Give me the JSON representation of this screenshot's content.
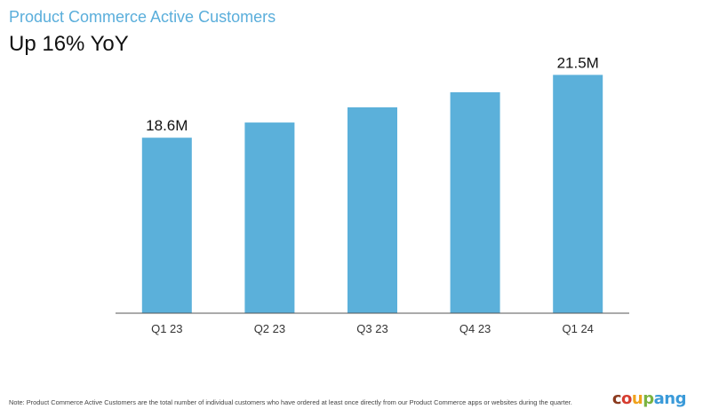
{
  "header": {
    "title": "Product Commerce Active Customers",
    "subtitle": "Up 16% YoY"
  },
  "chart_data": {
    "type": "bar",
    "categories": [
      "Q1 23",
      "Q2 23",
      "Q3 23",
      "Q4 23",
      "Q1 24"
    ],
    "values": [
      18.6,
      19.3,
      20.0,
      20.7,
      21.5
    ],
    "data_labels": [
      "18.6M",
      "",
      "",
      "",
      "21.5M"
    ],
    "unit": "M",
    "ylim": [
      10.5,
      22.5
    ],
    "grid": false,
    "bar_color": "#5bb0da",
    "axis_color": "#555555"
  },
  "footnote": "Note: Product Commerce Active Customers are the total number of individual customers who have ordered at least once directly from our Product Commerce apps or websites during the quarter.",
  "logo": {
    "text": "coupang",
    "letter_colors": [
      "#8b3a1e",
      "#d63c2f",
      "#f0a21c",
      "#7ab340",
      "#3a9ad9",
      "#3a9ad9",
      "#3a9ad9"
    ]
  },
  "colors": {
    "title": "#5aaedb",
    "subtitle": "#111111"
  }
}
